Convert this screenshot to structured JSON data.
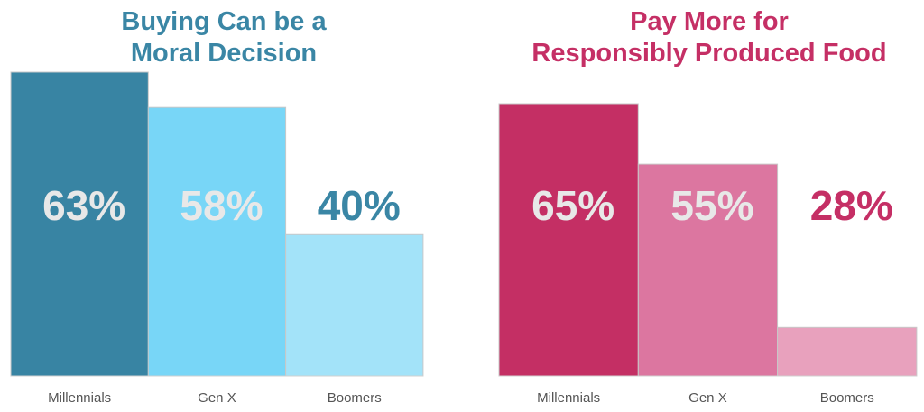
{
  "chart_data": [
    {
      "type": "bar",
      "title": [
        "Buying Can be a",
        "Moral Decision"
      ],
      "title_color": "#3a86a5",
      "categories": [
        "Millennials",
        "Gen X",
        "Boomers"
      ],
      "values": [
        63,
        58,
        40
      ],
      "data_labels": [
        "63%",
        "58%",
        "40%"
      ],
      "bar_colors": [
        "#3884a3",
        "#78d6f7",
        "#a3e3f9"
      ],
      "label_colors": [
        "#e8e8e8",
        "#e8e8e8",
        "#3a86a5"
      ],
      "xlabel": "",
      "ylabel": "",
      "ylim": [
        20,
        63
      ],
      "grid": false
    },
    {
      "type": "bar",
      "title": [
        "Pay More for",
        "Responsibly Produced Food"
      ],
      "title_color": "#c52f65",
      "categories": [
        "Millennials",
        "Gen X",
        "Boomers"
      ],
      "values": [
        65,
        55,
        28
      ],
      "data_labels": [
        "65%",
        "55%",
        "28%"
      ],
      "bar_colors": [
        "#c42f64",
        "#dc76a0",
        "#e8a1bd"
      ],
      "label_colors": [
        "#e8e8e8",
        "#e8e8e8",
        "#c52f65"
      ],
      "xlabel": "",
      "ylabel": "",
      "ylim": [
        20,
        65
      ],
      "grid": false
    }
  ]
}
